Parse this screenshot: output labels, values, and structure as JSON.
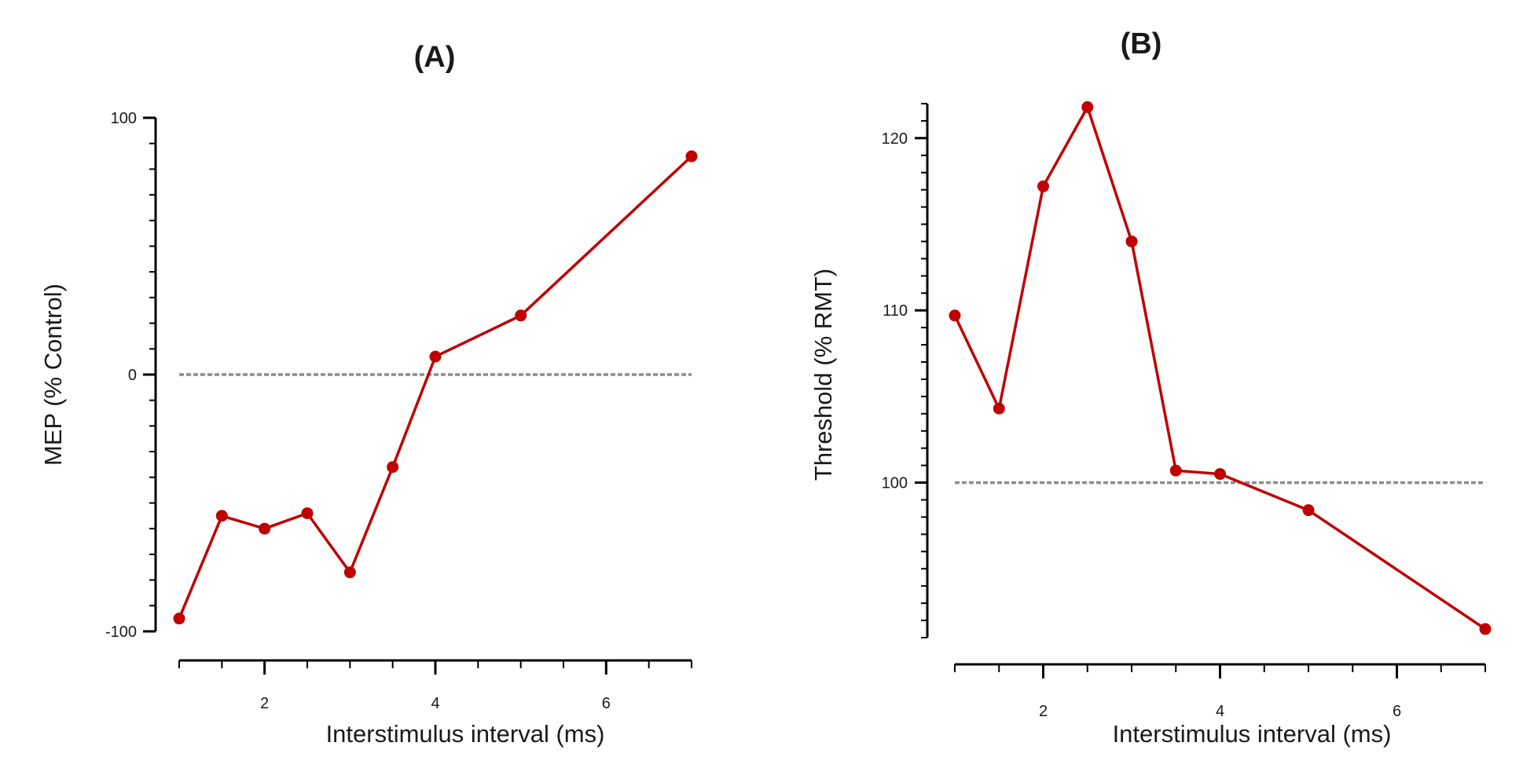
{
  "chart_data": [
    {
      "type": "line",
      "panel": "(A)",
      "title": "",
      "xlabel": "Interstimulus interval (ms)",
      "ylabel": "MEP (% Control)",
      "xlim": [
        1,
        7
      ],
      "ylim": [
        -100,
        100
      ],
      "xticks": [
        2,
        4,
        6
      ],
      "xtick_labels": [
        "2",
        "4",
        "6"
      ],
      "yticks": [
        -100,
        0,
        100
      ],
      "ytick_labels": [
        "-100",
        "0",
        "100"
      ],
      "x_minor_step": 0.5,
      "y_minor_step": 10,
      "reference_line": 0,
      "grid": false,
      "series": [
        {
          "name": "MEP",
          "color": "#c00000",
          "x": [
            1,
            1.5,
            2,
            2.5,
            3,
            3.5,
            4,
            5,
            7
          ],
          "y": [
            -95,
            -55,
            -60,
            -54,
            -77,
            -36,
            7,
            23,
            85
          ]
        }
      ]
    },
    {
      "type": "line",
      "panel": "(B)",
      "title": "",
      "xlabel": "Interstimulus interval (ms)",
      "ylabel": "Threshold (% RMT)",
      "xlim": [
        1,
        7
      ],
      "ylim": [
        91,
        122
      ],
      "xticks": [
        2,
        4,
        6
      ],
      "xtick_labels": [
        "2",
        "4",
        "6"
      ],
      "yticks": [
        100,
        110,
        120
      ],
      "ytick_labels": [
        "100",
        "110",
        "120"
      ],
      "x_minor_step": 0.5,
      "y_minor_step": 1,
      "reference_line": 100,
      "grid": false,
      "series": [
        {
          "name": "Threshold",
          "color": "#c00000",
          "x": [
            1,
            1.5,
            2,
            2.5,
            3,
            3.5,
            4,
            5,
            7
          ],
          "y": [
            109.7,
            104.3,
            117.2,
            121.8,
            114,
            100.7,
            100.5,
            98.4,
            91.5
          ]
        }
      ]
    }
  ]
}
